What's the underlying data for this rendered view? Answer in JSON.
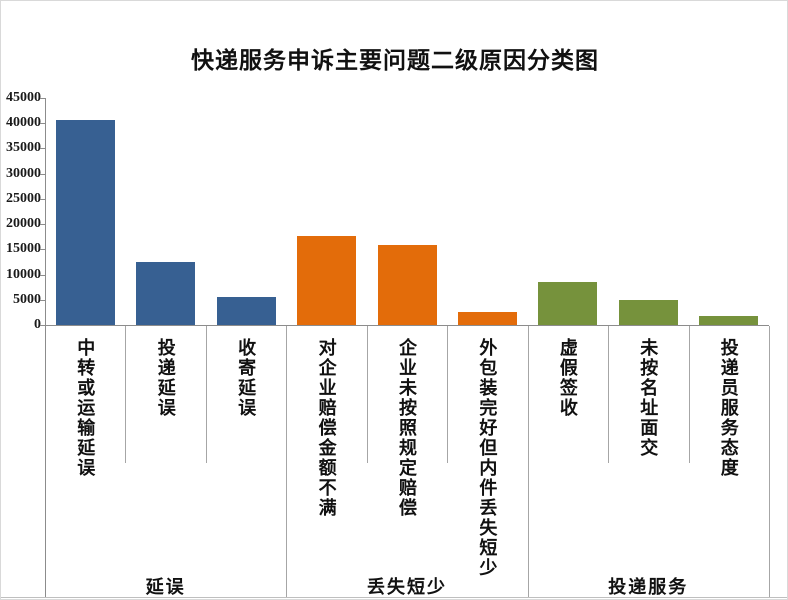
{
  "chart_data": {
    "type": "bar",
    "title": "快递服务申诉主要问题二级原因分类图",
    "categories": [
      "中转或运输延误",
      "投递延误",
      "收寄延误",
      "对企业赔偿金额不满",
      "企业未按照规定赔偿",
      "外包装完好但内件丢失短少",
      "虚假签收",
      "未按名址面交",
      "投递员服务态度"
    ],
    "values": [
      40700,
      12400,
      5500,
      17600,
      15900,
      2600,
      8600,
      4900,
      1700
    ],
    "groups": [
      {
        "label": "延误",
        "count": 3,
        "color": "#376092"
      },
      {
        "label": "丢失短少",
        "count": 3,
        "color": "#E36C0A"
      },
      {
        "label": "投递服务",
        "count": 3,
        "color": "#76923C"
      }
    ],
    "xlabel": "",
    "ylabel": "",
    "ylim": [
      0,
      45000
    ],
    "ytick_step": 5000,
    "ytick_labels": [
      "45000",
      "40000",
      "35000",
      "30000",
      "25000",
      "20000",
      "15000",
      "10000",
      "5000",
      "0"
    ],
    "grid": false,
    "legend": "none",
    "axis_line_color": "#8c8c8c",
    "separator_color": "#a6a6a6"
  }
}
